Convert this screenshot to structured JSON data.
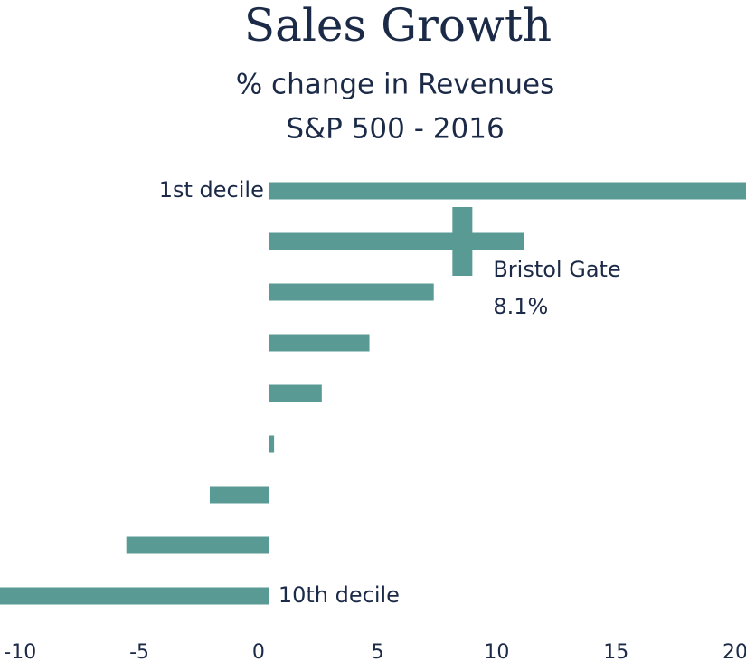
{
  "chart_data": {
    "type": "bar",
    "orientation": "horizontal",
    "title": "Sales Growth",
    "subtitle": [
      "% change in Revenues",
      "S&P 500 - 2016"
    ],
    "categories": [
      "1st decile",
      null,
      null,
      null,
      null,
      null,
      null,
      null,
      "10th decile"
    ],
    "values": [
      21,
      10.7,
      6.9,
      4.2,
      2.2,
      0.2,
      -2.5,
      -6.0,
      -12
    ],
    "color": "#5a9a94",
    "xlim": [
      -11.3,
      20
    ],
    "xticks": [
      -10,
      -5,
      0,
      5,
      10,
      15,
      20
    ],
    "marker": {
      "name": "Bristol Gate",
      "value": 8.1,
      "value_label": "8.1%",
      "category_index": 1
    }
  }
}
